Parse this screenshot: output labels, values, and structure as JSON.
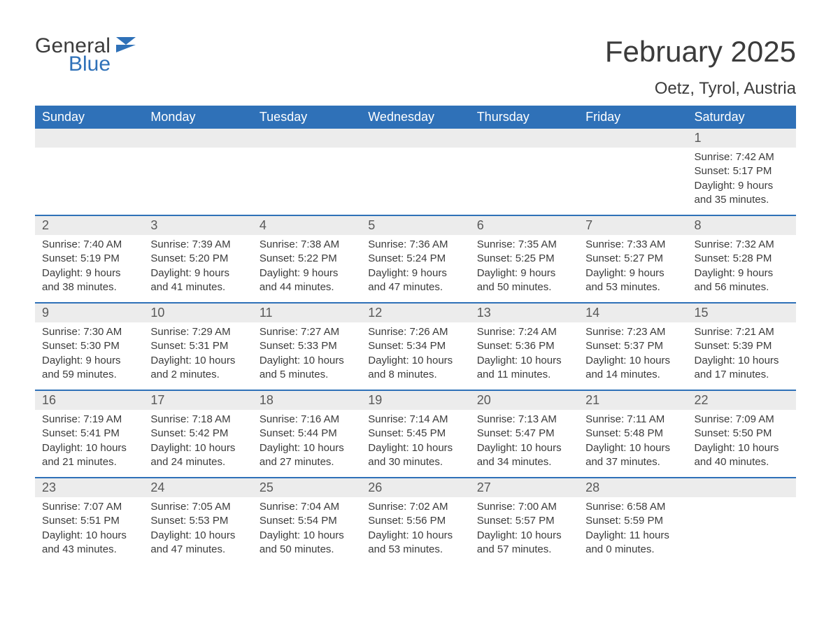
{
  "logo": {
    "word1": "General",
    "word2": "Blue"
  },
  "title": "February 2025",
  "location": "Oetz, Tyrol, Austria",
  "colors": {
    "header_bg": "#2f71b8",
    "header_text": "#ffffff",
    "daynum_bg": "#ececec",
    "divider": "#2f71b8",
    "body_text": "#3b3b3b",
    "daynum_text": "#595959",
    "logo_gray": "#3b3b3b",
    "logo_blue": "#2f71b8",
    "page_bg": "#ffffff"
  },
  "typography": {
    "title_fontsize": 42,
    "location_fontsize": 24,
    "dow_fontsize": 18,
    "daynum_fontsize": 18,
    "body_fontsize": 15,
    "font_family": "Arial"
  },
  "days_of_week": [
    "Sunday",
    "Monday",
    "Tuesday",
    "Wednesday",
    "Thursday",
    "Friday",
    "Saturday"
  ],
  "weeks": [
    [
      {
        "day": "",
        "sunrise": "",
        "sunset": "",
        "daylight": ""
      },
      {
        "day": "",
        "sunrise": "",
        "sunset": "",
        "daylight": ""
      },
      {
        "day": "",
        "sunrise": "",
        "sunset": "",
        "daylight": ""
      },
      {
        "day": "",
        "sunrise": "",
        "sunset": "",
        "daylight": ""
      },
      {
        "day": "",
        "sunrise": "",
        "sunset": "",
        "daylight": ""
      },
      {
        "day": "",
        "sunrise": "",
        "sunset": "",
        "daylight": ""
      },
      {
        "day": "1",
        "sunrise": "Sunrise: 7:42 AM",
        "sunset": "Sunset: 5:17 PM",
        "daylight": "Daylight: 9 hours and 35 minutes."
      }
    ],
    [
      {
        "day": "2",
        "sunrise": "Sunrise: 7:40 AM",
        "sunset": "Sunset: 5:19 PM",
        "daylight": "Daylight: 9 hours and 38 minutes."
      },
      {
        "day": "3",
        "sunrise": "Sunrise: 7:39 AM",
        "sunset": "Sunset: 5:20 PM",
        "daylight": "Daylight: 9 hours and 41 minutes."
      },
      {
        "day": "4",
        "sunrise": "Sunrise: 7:38 AM",
        "sunset": "Sunset: 5:22 PM",
        "daylight": "Daylight: 9 hours and 44 minutes."
      },
      {
        "day": "5",
        "sunrise": "Sunrise: 7:36 AM",
        "sunset": "Sunset: 5:24 PM",
        "daylight": "Daylight: 9 hours and 47 minutes."
      },
      {
        "day": "6",
        "sunrise": "Sunrise: 7:35 AM",
        "sunset": "Sunset: 5:25 PM",
        "daylight": "Daylight: 9 hours and 50 minutes."
      },
      {
        "day": "7",
        "sunrise": "Sunrise: 7:33 AM",
        "sunset": "Sunset: 5:27 PM",
        "daylight": "Daylight: 9 hours and 53 minutes."
      },
      {
        "day": "8",
        "sunrise": "Sunrise: 7:32 AM",
        "sunset": "Sunset: 5:28 PM",
        "daylight": "Daylight: 9 hours and 56 minutes."
      }
    ],
    [
      {
        "day": "9",
        "sunrise": "Sunrise: 7:30 AM",
        "sunset": "Sunset: 5:30 PM",
        "daylight": "Daylight: 9 hours and 59 minutes."
      },
      {
        "day": "10",
        "sunrise": "Sunrise: 7:29 AM",
        "sunset": "Sunset: 5:31 PM",
        "daylight": "Daylight: 10 hours and 2 minutes."
      },
      {
        "day": "11",
        "sunrise": "Sunrise: 7:27 AM",
        "sunset": "Sunset: 5:33 PM",
        "daylight": "Daylight: 10 hours and 5 minutes."
      },
      {
        "day": "12",
        "sunrise": "Sunrise: 7:26 AM",
        "sunset": "Sunset: 5:34 PM",
        "daylight": "Daylight: 10 hours and 8 minutes."
      },
      {
        "day": "13",
        "sunrise": "Sunrise: 7:24 AM",
        "sunset": "Sunset: 5:36 PM",
        "daylight": "Daylight: 10 hours and 11 minutes."
      },
      {
        "day": "14",
        "sunrise": "Sunrise: 7:23 AM",
        "sunset": "Sunset: 5:37 PM",
        "daylight": "Daylight: 10 hours and 14 minutes."
      },
      {
        "day": "15",
        "sunrise": "Sunrise: 7:21 AM",
        "sunset": "Sunset: 5:39 PM",
        "daylight": "Daylight: 10 hours and 17 minutes."
      }
    ],
    [
      {
        "day": "16",
        "sunrise": "Sunrise: 7:19 AM",
        "sunset": "Sunset: 5:41 PM",
        "daylight": "Daylight: 10 hours and 21 minutes."
      },
      {
        "day": "17",
        "sunrise": "Sunrise: 7:18 AM",
        "sunset": "Sunset: 5:42 PM",
        "daylight": "Daylight: 10 hours and 24 minutes."
      },
      {
        "day": "18",
        "sunrise": "Sunrise: 7:16 AM",
        "sunset": "Sunset: 5:44 PM",
        "daylight": "Daylight: 10 hours and 27 minutes."
      },
      {
        "day": "19",
        "sunrise": "Sunrise: 7:14 AM",
        "sunset": "Sunset: 5:45 PM",
        "daylight": "Daylight: 10 hours and 30 minutes."
      },
      {
        "day": "20",
        "sunrise": "Sunrise: 7:13 AM",
        "sunset": "Sunset: 5:47 PM",
        "daylight": "Daylight: 10 hours and 34 minutes."
      },
      {
        "day": "21",
        "sunrise": "Sunrise: 7:11 AM",
        "sunset": "Sunset: 5:48 PM",
        "daylight": "Daylight: 10 hours and 37 minutes."
      },
      {
        "day": "22",
        "sunrise": "Sunrise: 7:09 AM",
        "sunset": "Sunset: 5:50 PM",
        "daylight": "Daylight: 10 hours and 40 minutes."
      }
    ],
    [
      {
        "day": "23",
        "sunrise": "Sunrise: 7:07 AM",
        "sunset": "Sunset: 5:51 PM",
        "daylight": "Daylight: 10 hours and 43 minutes."
      },
      {
        "day": "24",
        "sunrise": "Sunrise: 7:05 AM",
        "sunset": "Sunset: 5:53 PM",
        "daylight": "Daylight: 10 hours and 47 minutes."
      },
      {
        "day": "25",
        "sunrise": "Sunrise: 7:04 AM",
        "sunset": "Sunset: 5:54 PM",
        "daylight": "Daylight: 10 hours and 50 minutes."
      },
      {
        "day": "26",
        "sunrise": "Sunrise: 7:02 AM",
        "sunset": "Sunset: 5:56 PM",
        "daylight": "Daylight: 10 hours and 53 minutes."
      },
      {
        "day": "27",
        "sunrise": "Sunrise: 7:00 AM",
        "sunset": "Sunset: 5:57 PM",
        "daylight": "Daylight: 10 hours and 57 minutes."
      },
      {
        "day": "28",
        "sunrise": "Sunrise: 6:58 AM",
        "sunset": "Sunset: 5:59 PM",
        "daylight": "Daylight: 11 hours and 0 minutes."
      },
      {
        "day": "",
        "sunrise": "",
        "sunset": "",
        "daylight": ""
      }
    ]
  ]
}
